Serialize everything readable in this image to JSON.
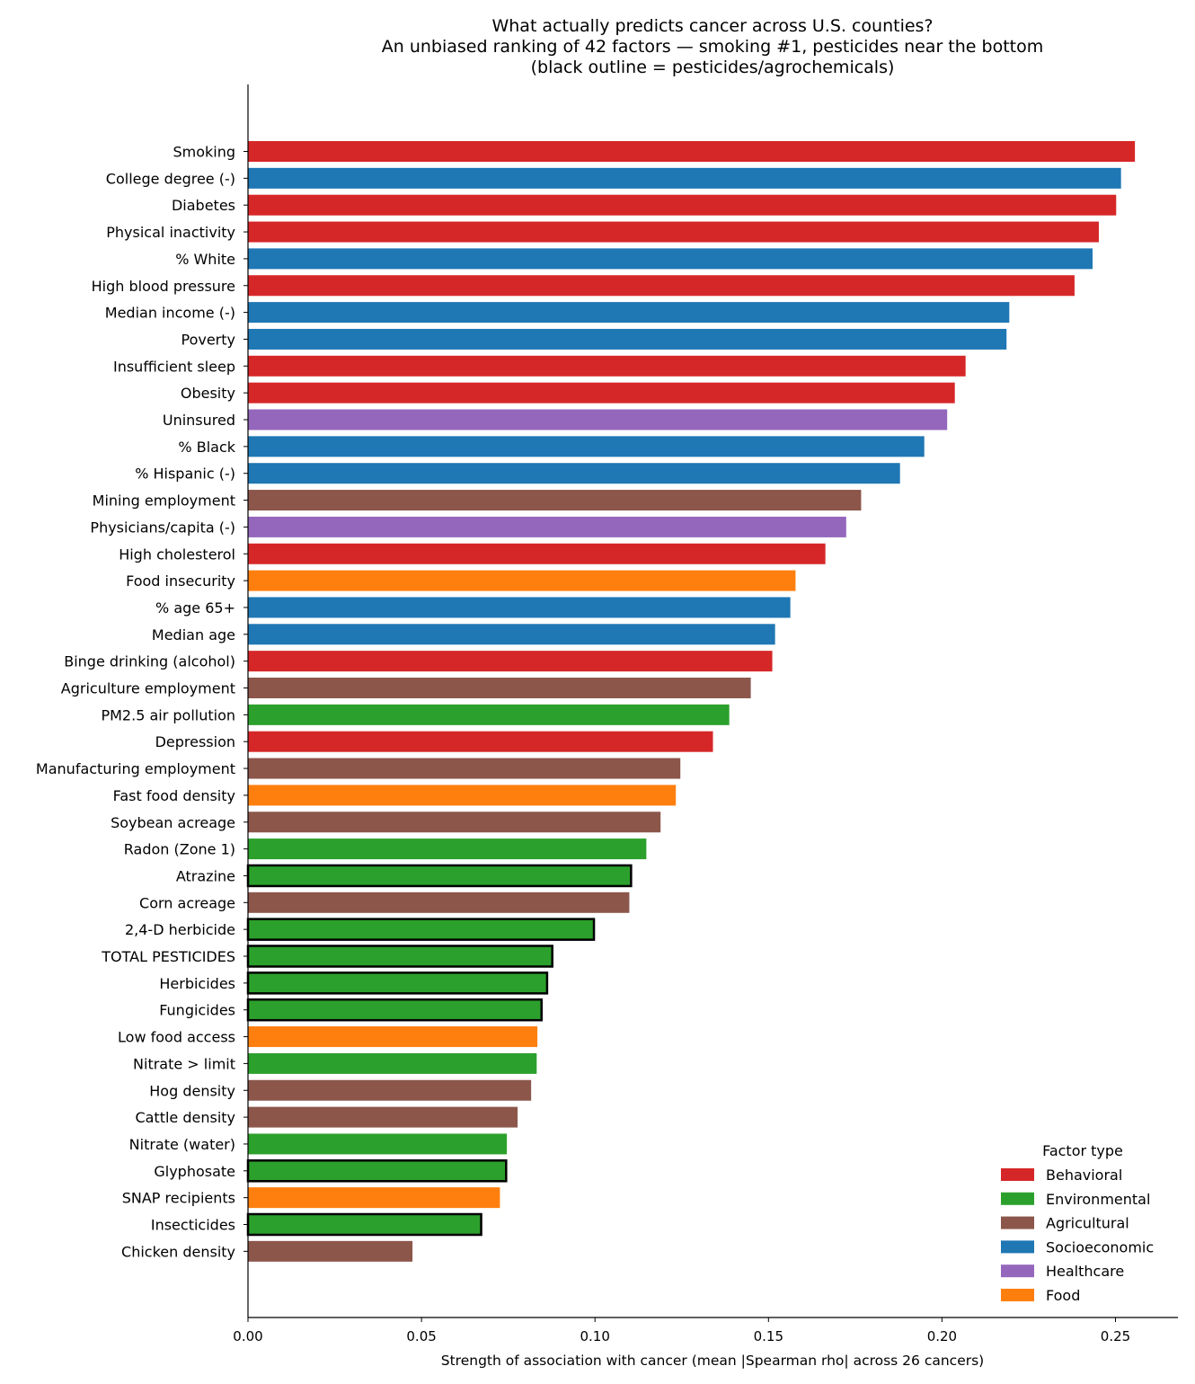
{
  "chart_data": {
    "type": "bar",
    "orientation": "horizontal",
    "title_lines": [
      "What actually predicts cancer across U.S. counties?",
      "An unbiased ranking of 42 factors — smoking #1, pesticides near the bottom",
      "(black outline = pesticides/agrochemicals)"
    ],
    "xlabel": "Strength of association with cancer  (mean |Spearman rho| across 26 cancers)",
    "ylabel": "",
    "xlim": [
      0,
      0.268
    ],
    "xticks": [
      "0.00",
      "0.05",
      "0.10",
      "0.15",
      "0.20",
      "0.25"
    ],
    "grid": false,
    "legend": {
      "title": "Factor type",
      "placement": "lower-right",
      "entries": [
        {
          "name": "Behavioral",
          "color": "#d62728"
        },
        {
          "name": "Environmental",
          "color": "#2ca02c"
        },
        {
          "name": "Agricultural",
          "color": "#8c564b"
        },
        {
          "name": "Socioeconomic",
          "color": "#1f77b4"
        },
        {
          "name": "Healthcare",
          "color": "#9467bd"
        },
        {
          "name": "Food",
          "color": "#ff7f0e"
        }
      ]
    },
    "bars": [
      {
        "label": "Smoking",
        "value": 0.2556,
        "type": "Behavioral",
        "outline": false
      },
      {
        "label": "College degree (-)",
        "value": 0.2516,
        "type": "Socioeconomic",
        "outline": false
      },
      {
        "label": "Diabetes",
        "value": 0.2502,
        "type": "Behavioral",
        "outline": false
      },
      {
        "label": "Physical inactivity",
        "value": 0.2452,
        "type": "Behavioral",
        "outline": false
      },
      {
        "label": "% White",
        "value": 0.2434,
        "type": "Socioeconomic",
        "outline": false
      },
      {
        "label": "High blood pressure",
        "value": 0.2382,
        "type": "Behavioral",
        "outline": false
      },
      {
        "label": "Median income (-)",
        "value": 0.2194,
        "type": "Socioeconomic",
        "outline": false
      },
      {
        "label": "Poverty",
        "value": 0.2186,
        "type": "Socioeconomic",
        "outline": false
      },
      {
        "label": "Insufficient sleep",
        "value": 0.2068,
        "type": "Behavioral",
        "outline": false
      },
      {
        "label": "Obesity",
        "value": 0.2037,
        "type": "Behavioral",
        "outline": false
      },
      {
        "label": "Uninsured",
        "value": 0.2015,
        "type": "Healthcare",
        "outline": false
      },
      {
        "label": "% Black",
        "value": 0.1949,
        "type": "Socioeconomic",
        "outline": false
      },
      {
        "label": "% Hispanic (-)",
        "value": 0.1879,
        "type": "Socioeconomic",
        "outline": false
      },
      {
        "label": "Mining employment",
        "value": 0.1767,
        "type": "Agricultural",
        "outline": false
      },
      {
        "label": "Physicians/capita (-)",
        "value": 0.1724,
        "type": "Healthcare",
        "outline": false
      },
      {
        "label": "High cholesterol",
        "value": 0.1664,
        "type": "Behavioral",
        "outline": false
      },
      {
        "label": "Food insecurity",
        "value": 0.1578,
        "type": "Food",
        "outline": false
      },
      {
        "label": "% age 65+",
        "value": 0.1563,
        "type": "Socioeconomic",
        "outline": false
      },
      {
        "label": "Median age",
        "value": 0.1519,
        "type": "Socioeconomic",
        "outline": false
      },
      {
        "label": "Binge drinking (alcohol)",
        "value": 0.1511,
        "type": "Behavioral",
        "outline": false
      },
      {
        "label": "Agriculture employment",
        "value": 0.1449,
        "type": "Agricultural",
        "outline": false
      },
      {
        "label": "PM2.5 air pollution",
        "value": 0.1387,
        "type": "Environmental",
        "outline": false
      },
      {
        "label": "Depression",
        "value": 0.134,
        "type": "Behavioral",
        "outline": false
      },
      {
        "label": "Manufacturing employment",
        "value": 0.1246,
        "type": "Agricultural",
        "outline": false
      },
      {
        "label": "Fast food density",
        "value": 0.1233,
        "type": "Food",
        "outline": false
      },
      {
        "label": "Soybean acreage",
        "value": 0.1189,
        "type": "Agricultural",
        "outline": false
      },
      {
        "label": "Radon (Zone 1)",
        "value": 0.1148,
        "type": "Environmental",
        "outline": false
      },
      {
        "label": "Atrazine",
        "value": 0.1104,
        "type": "Environmental",
        "outline": true
      },
      {
        "label": "Corn acreage",
        "value": 0.1099,
        "type": "Agricultural",
        "outline": false
      },
      {
        "label": "2,4-D herbicide",
        "value": 0.0997,
        "type": "Environmental",
        "outline": true
      },
      {
        "label": "TOTAL PESTICIDES",
        "value": 0.0877,
        "type": "Environmental",
        "outline": true
      },
      {
        "label": "Herbicides",
        "value": 0.0862,
        "type": "Environmental",
        "outline": true
      },
      {
        "label": "Fungicides",
        "value": 0.0846,
        "type": "Environmental",
        "outline": true
      },
      {
        "label": "Low food access",
        "value": 0.0834,
        "type": "Food",
        "outline": false
      },
      {
        "label": "Nitrate > limit",
        "value": 0.0832,
        "type": "Environmental",
        "outline": false
      },
      {
        "label": "Hog density",
        "value": 0.0816,
        "type": "Agricultural",
        "outline": false
      },
      {
        "label": "Cattle density",
        "value": 0.0777,
        "type": "Agricultural",
        "outline": false
      },
      {
        "label": "Nitrate (water)",
        "value": 0.0746,
        "type": "Environmental",
        "outline": false
      },
      {
        "label": "Glyphosate",
        "value": 0.0744,
        "type": "Environmental",
        "outline": true
      },
      {
        "label": "SNAP recipients",
        "value": 0.0726,
        "type": "Food",
        "outline": false
      },
      {
        "label": "Insecticides",
        "value": 0.0672,
        "type": "Environmental",
        "outline": true
      },
      {
        "label": "Chicken density",
        "value": 0.0474,
        "type": "Agricultural",
        "outline": false
      }
    ]
  }
}
